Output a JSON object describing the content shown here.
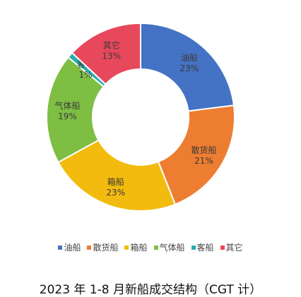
{
  "chart_data": {
    "type": "pie",
    "donut": true,
    "start_angle_deg": 0,
    "direction": "clockwise",
    "title": "2023 年 1-8 月新船成交结构（CGT 计）",
    "legend_position": "bottom",
    "slices": [
      {
        "name": "油船",
        "value": 23,
        "label": "23%",
        "color": "#4472C4"
      },
      {
        "name": "散货船",
        "value": 21,
        "label": "21%",
        "color": "#ED7D31"
      },
      {
        "name": "箱船",
        "value": 23,
        "label": "23%",
        "color": "#F2BB0E"
      },
      {
        "name": "气体船",
        "value": 19,
        "label": "19%",
        "color": "#7DBE43"
      },
      {
        "name": "客船",
        "value": 1,
        "label": "1%",
        "color": "#26AEAD"
      },
      {
        "name": "其它",
        "value": 13,
        "label": "13%",
        "color": "#E8485C"
      }
    ]
  }
}
